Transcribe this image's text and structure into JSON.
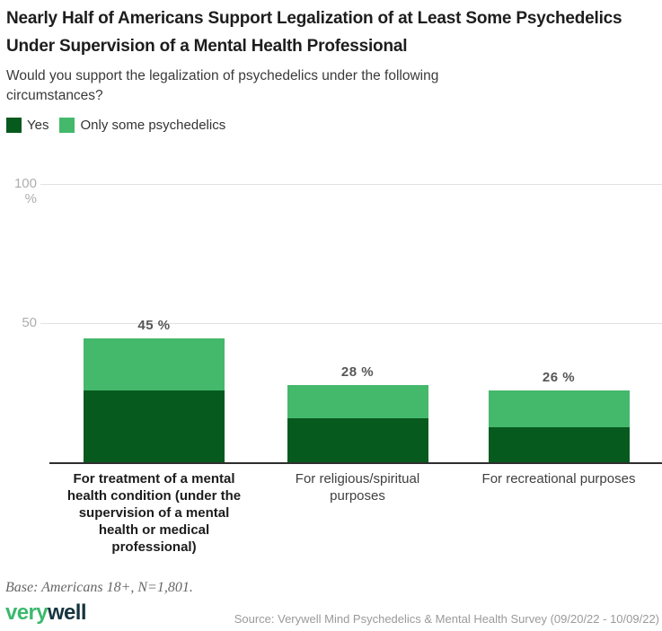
{
  "header": {
    "title": "Nearly Half of Americans Support Legalization of at Least Some Psychedelics Under Supervision of a Mental Health Professional",
    "subtitle": "Would you support the legalization of psychedelics under the following circumstances?"
  },
  "legend": [
    {
      "label": "Yes",
      "color": "#075A1E"
    },
    {
      "label": "Only some psychedelics",
      "color": "#44B86B"
    }
  ],
  "chart_data": {
    "type": "bar",
    "stacked": true,
    "title": "Nearly Half of Americans Support Legalization of at Least Some Psychedelics Under Supervision of a Mental Health Professional",
    "question": "Would you support the legalization of psychedelics under the following circumstances?",
    "categories": [
      {
        "label": "For treatment of a mental health condition (under the supervision of a mental health or medical professional)",
        "bold": true
      },
      {
        "label": "For religious/spiritual purposes",
        "bold": false
      },
      {
        "label": "For recreational purposes",
        "bold": false
      }
    ],
    "series": [
      {
        "name": "Yes",
        "color": "#075A1E",
        "values": [
          26,
          16,
          13
        ]
      },
      {
        "name": "Only some psychedelics",
        "color": "#44B86B",
        "values": [
          19,
          12,
          13
        ]
      }
    ],
    "totals": [
      45,
      28,
      26
    ],
    "total_labels": [
      "45 %",
      "28 %",
      "26 %"
    ],
    "y_ticks": [
      {
        "label": "100 %",
        "value": 100
      },
      {
        "label": "50",
        "value": 50
      }
    ],
    "ylim": [
      0,
      100
    ],
    "grid": true,
    "legend_position": "top-left"
  },
  "footer": {
    "base_note": "Base: Americans 18+, N=1,801.",
    "logo": {
      "part1": "very",
      "part2": "well",
      "color1": "#3CB96E",
      "color2": "#16343F"
    },
    "source": "Source: Verywell Mind Psychedelics & Mental Health Survey (09/20/22 - 10/09/22)"
  }
}
